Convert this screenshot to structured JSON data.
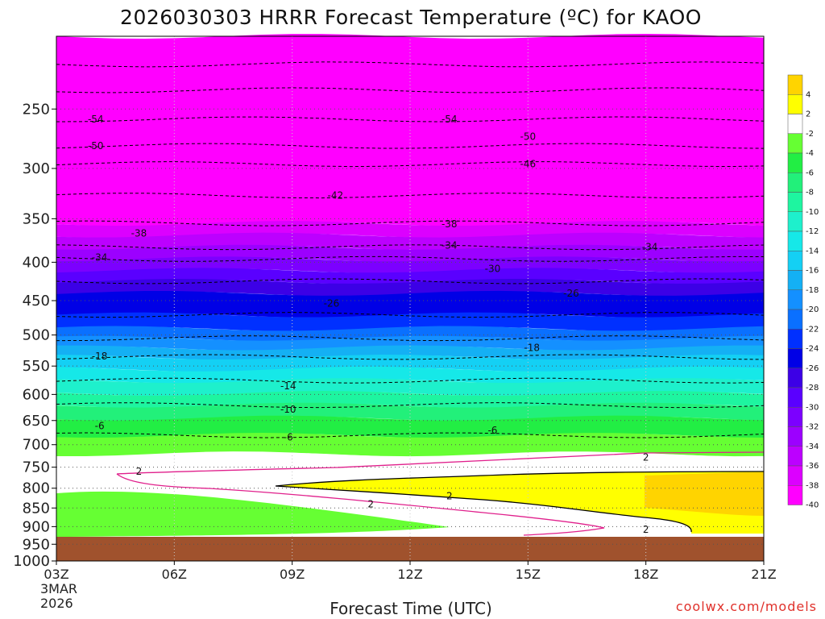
{
  "title": "2026030303 HRRR Forecast Temperature (ºC) for KAOO",
  "xlabel": "Forecast Time (UTC)",
  "credit": "coolwx.com/models",
  "chart_data": {
    "type": "heatmap",
    "x_ticks": [
      "03Z",
      "06Z",
      "09Z",
      "12Z",
      "15Z",
      "18Z",
      "21Z"
    ],
    "x_first_sub": [
      "3MAR",
      "2026"
    ],
    "xlim_hours": [
      3,
      21
    ],
    "y_ticks": [
      250,
      300,
      350,
      400,
      450,
      500,
      550,
      600,
      650,
      700,
      750,
      800,
      850,
      900,
      950,
      1000
    ],
    "ylabel": "",
    "y_range_hPa": [
      200,
      1000
    ],
    "y_scale": "log",
    "colorbar_ticks": [
      4,
      2,
      -2,
      -4,
      -6,
      -8,
      -10,
      -12,
      -14,
      -16,
      -18,
      -20,
      -22,
      -24,
      -26,
      -28,
      -30,
      -32,
      -34,
      -36,
      -38,
      -40
    ],
    "colorbar_colors": [
      "#ffd400",
      "#ffff00",
      "#ffffff",
      "#66ff33",
      "#22ee44",
      "#22f07a",
      "#1ef5a0",
      "#1ef0cc",
      "#16e8e8",
      "#14d0f4",
      "#14b0f4",
      "#1490ff",
      "#0a70ff",
      "#0030ff",
      "#0000e6",
      "#3c00e6",
      "#5a00ff",
      "#7c00ff",
      "#9c00ff",
      "#bc00ff",
      "#dc00ff",
      "#ff00ff"
    ],
    "ground_color": "#a0522d",
    "temperature_bands_hPa": [
      {
        "temp": -40,
        "top": 200,
        "bottom": 355
      },
      {
        "temp": -38,
        "top": 355,
        "bottom": 368
      },
      {
        "temp": -36,
        "top": 368,
        "bottom": 382
      },
      {
        "temp": -34,
        "top": 382,
        "bottom": 396
      },
      {
        "temp": -32,
        "top": 396,
        "bottom": 410
      },
      {
        "temp": -30,
        "top": 410,
        "bottom": 424
      },
      {
        "temp": -28,
        "top": 424,
        "bottom": 440
      },
      {
        "temp": -26,
        "top": 440,
        "bottom": 470
      },
      {
        "temp": -24,
        "top": 470,
        "bottom": 490
      },
      {
        "temp": -22,
        "top": 490,
        "bottom": 505
      },
      {
        "temp": -20,
        "top": 505,
        "bottom": 520
      },
      {
        "temp": -18,
        "top": 520,
        "bottom": 535
      },
      {
        "temp": -16,
        "top": 535,
        "bottom": 555
      },
      {
        "temp": -14,
        "top": 555,
        "bottom": 575
      },
      {
        "temp": -12,
        "top": 575,
        "bottom": 598
      },
      {
        "temp": -10,
        "top": 598,
        "bottom": 620
      },
      {
        "temp": -8,
        "top": 620,
        "bottom": 645
      },
      {
        "temp": -6,
        "top": 645,
        "bottom": 680
      },
      {
        "temp": -4,
        "top": 680,
        "bottom": 720
      },
      {
        "temp": -2,
        "top": 720,
        "bottom": 760
      }
    ],
    "contour_labels": [
      {
        "text": "-54",
        "hour": 4.0,
        "p": 258
      },
      {
        "text": "-54",
        "hour": 13.0,
        "p": 258
      },
      {
        "text": "-50",
        "hour": 4.0,
        "p": 280
      },
      {
        "text": "-50",
        "hour": 15.0,
        "p": 272
      },
      {
        "text": "-46",
        "hour": 15.0,
        "p": 296
      },
      {
        "text": "-42",
        "hour": 10.1,
        "p": 326
      },
      {
        "text": "-38",
        "hour": 5.1,
        "p": 366
      },
      {
        "text": "-38",
        "hour": 13.0,
        "p": 356
      },
      {
        "text": "-34",
        "hour": 4.1,
        "p": 394
      },
      {
        "text": "-34",
        "hour": 13.0,
        "p": 380
      },
      {
        "text": "-34",
        "hour": 18.1,
        "p": 382
      },
      {
        "text": "-30",
        "hour": 14.1,
        "p": 408
      },
      {
        "text": "-26",
        "hour": 10.0,
        "p": 454
      },
      {
        "text": "-26",
        "hour": 16.1,
        "p": 440
      },
      {
        "text": "-18",
        "hour": 4.1,
        "p": 534
      },
      {
        "text": "-18",
        "hour": 15.1,
        "p": 520
      },
      {
        "text": "-14",
        "hour": 8.9,
        "p": 585
      },
      {
        "text": "-10",
        "hour": 8.9,
        "p": 628
      },
      {
        "text": "-6",
        "hour": 4.1,
        "p": 661
      },
      {
        "text": "-6",
        "hour": 8.9,
        "p": 684
      },
      {
        "text": "-6",
        "hour": 14.1,
        "p": 670
      },
      {
        "text": "2",
        "hour": 5.1,
        "p": 760
      },
      {
        "text": "2",
        "hour": 11.0,
        "p": 840
      },
      {
        "text": "2",
        "hour": 13.0,
        "p": 820
      },
      {
        "text": "2",
        "hour": 18.0,
        "p": 728
      },
      {
        "text": "2",
        "hour": 18.0,
        "p": 908
      }
    ]
  }
}
